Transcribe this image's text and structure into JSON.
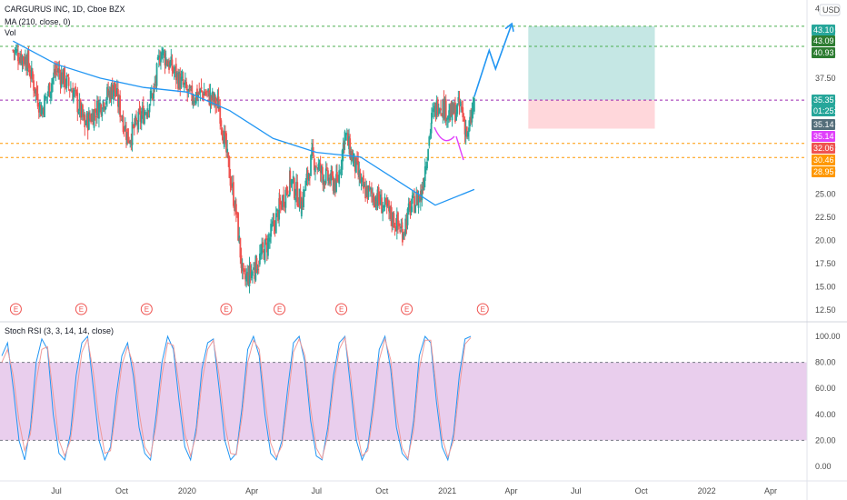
{
  "header": {
    "symbol_line": "CARGURUS INC, 1D, Cboe BZX",
    "ma_line": "MA (210, close, 0)",
    "vol_label": "Vol",
    "currency": "USD"
  },
  "rsi_header": "Stoch RSI (3, 3, 14, 14, close)",
  "colors": {
    "up": "#26a69a",
    "down": "#ef5350",
    "ma": "#2196f3",
    "rsi_k": "#2196f3",
    "rsi_d": "#ef9a9a",
    "rsi_band": "#e1bee7",
    "profit_zone": "#b2dfdb",
    "loss_zone": "#ffcdd2",
    "arrow": "#2196f3",
    "green_line": "#4caf50",
    "orange_line": "#ff9800",
    "purple_line": "#9c27b0"
  },
  "badges": [
    {
      "text": "43.10",
      "color": "#26a69a"
    },
    {
      "text": "43.09",
      "color": "#2e7d32"
    },
    {
      "text": "40.93",
      "color": "#2e7d32"
    },
    {
      "text": "35.35",
      "color": "#26a69a"
    },
    {
      "text": "01:25:16",
      "color": "#26a69a"
    },
    {
      "text": "35.14",
      "color": "#546e7a"
    },
    {
      "text": "35.14",
      "color": "#e040fb"
    },
    {
      "text": "32.06",
      "color": "#ef5350"
    },
    {
      "text": "30.46",
      "color": "#ff9800"
    },
    {
      "text": "28.95",
      "color": "#ff9800"
    }
  ],
  "earnings_marker": "E",
  "chart_data": [
    {
      "type": "candlestick",
      "title": "CARGURUS INC, 1D, Cboe BZX",
      "price_ticks": [
        "45.00",
        "42.50",
        "40.00",
        "37.50",
        "35.00",
        "32.50",
        "30.00",
        "27.50",
        "25.00",
        "22.50",
        "20.00",
        "17.50",
        "15.00",
        "12.50"
      ],
      "x_ticks": [
        "Jul",
        "Oct",
        "2020",
        "Apr",
        "Jul",
        "Oct",
        "2021",
        "Apr",
        "Jul",
        "Oct",
        "2022",
        "Apr"
      ],
      "ylim": [
        11.5,
        46
      ],
      "price_path": [
        {
          "date": "2019-05-01",
          "close": 40.5
        },
        {
          "date": "2019-05-20",
          "close": 39.5
        },
        {
          "date": "2019-06-10",
          "close": 34.0
        },
        {
          "date": "2019-07-01",
          "close": 38.5
        },
        {
          "date": "2019-07-25",
          "close": 36.0
        },
        {
          "date": "2019-08-10",
          "close": 32.5
        },
        {
          "date": "2019-08-30",
          "close": 34.5
        },
        {
          "date": "2019-09-20",
          "close": 36.5
        },
        {
          "date": "2019-10-10",
          "close": 31.0
        },
        {
          "date": "2019-10-30",
          "close": 33.5
        },
        {
          "date": "2019-11-15",
          "close": 36.0
        },
        {
          "date": "2019-11-25",
          "close": 40.5
        },
        {
          "date": "2019-12-15",
          "close": 38.0
        },
        {
          "date": "2020-01-05",
          "close": 35.5
        },
        {
          "date": "2020-01-25",
          "close": 36.0
        },
        {
          "date": "2020-02-15",
          "close": 34.5
        },
        {
          "date": "2020-02-28",
          "close": 28.0
        },
        {
          "date": "2020-03-10",
          "close": 23.0
        },
        {
          "date": "2020-03-20",
          "close": 15.5
        },
        {
          "date": "2020-04-05",
          "close": 17.0
        },
        {
          "date": "2020-04-25",
          "close": 20.0
        },
        {
          "date": "2020-05-10",
          "close": 23.5
        },
        {
          "date": "2020-05-25",
          "close": 26.5
        },
        {
          "date": "2020-06-10",
          "close": 24.0
        },
        {
          "date": "2020-06-25",
          "close": 29.0
        },
        {
          "date": "2020-07-10",
          "close": 27.0
        },
        {
          "date": "2020-07-30",
          "close": 26.0
        },
        {
          "date": "2020-08-10",
          "close": 31.5
        },
        {
          "date": "2020-08-20",
          "close": 29.0
        },
        {
          "date": "2020-09-05",
          "close": 25.5
        },
        {
          "date": "2020-09-25",
          "close": 24.5
        },
        {
          "date": "2020-10-15",
          "close": 22.5
        },
        {
          "date": "2020-10-30",
          "close": 21.0
        },
        {
          "date": "2020-11-10",
          "close": 23.5
        },
        {
          "date": "2020-11-25",
          "close": 25.0
        },
        {
          "date": "2020-12-10",
          "close": 33.0
        },
        {
          "date": "2020-12-20",
          "close": 35.0
        },
        {
          "date": "2021-01-05",
          "close": 33.5
        },
        {
          "date": "2021-01-20",
          "close": 34.5
        },
        {
          "date": "2021-01-30",
          "close": 31.0
        },
        {
          "date": "2021-02-08",
          "close": 35.35
        }
      ],
      "ma_path": [
        {
          "date": "2019-05-01",
          "value": 41.5
        },
        {
          "date": "2019-07-01",
          "value": 39.0
        },
        {
          "date": "2019-09-01",
          "value": 37.5
        },
        {
          "date": "2019-11-01",
          "value": 36.5
        },
        {
          "date": "2020-01-01",
          "value": 36.0
        },
        {
          "date": "2020-03-01",
          "value": 34.0
        },
        {
          "date": "2020-05-01",
          "value": 31.0
        },
        {
          "date": "2020-07-01",
          "value": 29.5
        },
        {
          "date": "2020-09-01",
          "value": 29.0
        },
        {
          "date": "2020-11-01",
          "value": 26.0
        },
        {
          "date": "2020-12-15",
          "value": 23.8
        },
        {
          "date": "2021-02-08",
          "value": 25.5
        }
      ],
      "horizontal_levels": [
        {
          "value": 43.1,
          "style": "green"
        },
        {
          "value": 40.93,
          "style": "green"
        },
        {
          "value": 35.14,
          "style": "purple"
        },
        {
          "value": 30.46,
          "style": "orange"
        },
        {
          "value": 28.95,
          "style": "orange"
        }
      ],
      "position_tool": {
        "entry": 35.14,
        "target": 43.1,
        "stop": 32.06,
        "from": "2021-04-25",
        "to": "2021-10-20"
      },
      "projection_arrow": [
        {
          "date": "2021-02-08",
          "value": 35.5
        },
        {
          "date": "2021-03-01",
          "value": 40.5
        },
        {
          "date": "2021-03-10",
          "value": 38.5
        },
        {
          "date": "2021-04-01",
          "value": 43.2
        }
      ],
      "earnings_dates": [
        "2019-05-05",
        "2019-08-05",
        "2019-11-05",
        "2020-02-25",
        "2020-05-10",
        "2020-08-05",
        "2020-11-05",
        "2021-02-20"
      ]
    },
    {
      "type": "line",
      "title": "Stoch RSI (3, 3, 14, 14, close)",
      "y_ticks": [
        "100.00",
        "80.00",
        "60.00",
        "40.00",
        "20.00",
        "0.00"
      ],
      "ylim": [
        -7,
        102
      ],
      "band": [
        20,
        80
      ],
      "series": [
        {
          "name": "K",
          "values": [
            85,
            95,
            60,
            20,
            5,
            30,
            80,
            98,
            90,
            40,
            10,
            5,
            25,
            70,
            95,
            100,
            60,
            20,
            5,
            15,
            55,
            85,
            95,
            70,
            30,
            10,
            5,
            40,
            80,
            100,
            90,
            50,
            15,
            5,
            30,
            75,
            95,
            98,
            60,
            20,
            5,
            10,
            45,
            90,
            100,
            85,
            40,
            10,
            5,
            20,
            60,
            95,
            100,
            80,
            35,
            8,
            5,
            30,
            70,
            95,
            100,
            60,
            20,
            5,
            15,
            50,
            90,
            100,
            75,
            30,
            10,
            5,
            35,
            85,
            100,
            95,
            50,
            15,
            5,
            25,
            70,
            98,
            100
          ]
        },
        {
          "name": "D",
          "values": [
            80,
            90,
            70,
            35,
            12,
            25,
            65,
            90,
            92,
            55,
            20,
            8,
            20,
            55,
            88,
            98,
            72,
            35,
            10,
            12,
            45,
            78,
            92,
            78,
            42,
            15,
            8,
            32,
            70,
            95,
            93,
            62,
            25,
            8,
            25,
            65,
            90,
            97,
            70,
            32,
            10,
            9,
            38,
            80,
            97,
            90,
            52,
            18,
            7,
            16,
            50,
            88,
            98,
            85,
            45,
            14,
            6,
            24,
            62,
            90,
            99,
            70,
            30,
            8,
            12,
            42,
            82,
            98,
            82,
            40,
            14,
            6,
            28,
            75,
            97,
            97,
            60,
            22,
            7,
            20,
            60,
            94,
            99
          ]
        }
      ]
    }
  ]
}
